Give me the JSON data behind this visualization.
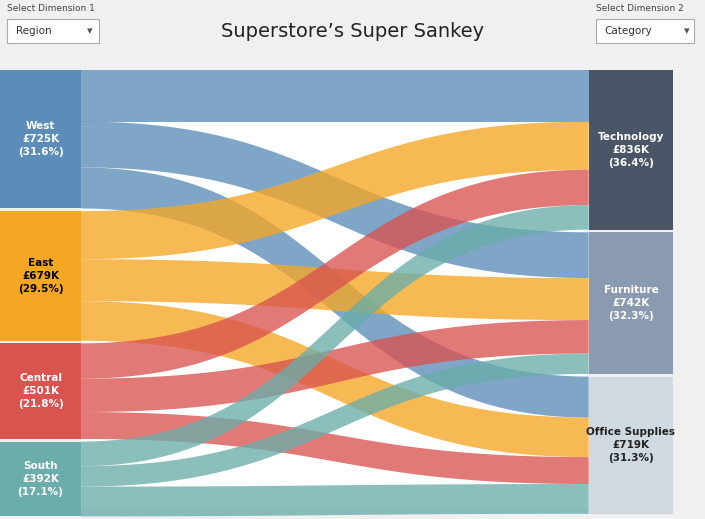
{
  "title": "Superstore’s Super Sankey",
  "left_nodes": [
    {
      "label": "West",
      "value": 725,
      "pct": "31.6%",
      "color": "#5b8db8"
    },
    {
      "label": "East",
      "value": 679,
      "pct": "29.5%",
      "color": "#f5a623"
    },
    {
      "label": "Central",
      "value": 501,
      "pct": "21.8%",
      "color": "#d9534f"
    },
    {
      "label": "South",
      "value": 392,
      "pct": "17.1%",
      "color": "#6aadaa"
    }
  ],
  "right_nodes": [
    {
      "label": "Technology",
      "value": 836,
      "pct": "36.4%",
      "color": "#4a5568"
    },
    {
      "label": "Furniture",
      "value": 742,
      "pct": "32.3%",
      "color": "#8a9ab0"
    },
    {
      "label": "Office Supplies",
      "value": 719,
      "pct": "31.3%",
      "color": "#d0d8e0"
    }
  ],
  "flows": [
    {
      "from": 0,
      "to": 0,
      "value": 270
    },
    {
      "from": 0,
      "to": 1,
      "value": 240
    },
    {
      "from": 0,
      "to": 2,
      "value": 215
    },
    {
      "from": 1,
      "to": 0,
      "value": 252
    },
    {
      "from": 1,
      "to": 1,
      "value": 220
    },
    {
      "from": 1,
      "to": 2,
      "value": 207
    },
    {
      "from": 2,
      "to": 0,
      "value": 185
    },
    {
      "from": 2,
      "to": 1,
      "value": 175
    },
    {
      "from": 2,
      "to": 2,
      "value": 141
    },
    {
      "from": 3,
      "to": 0,
      "value": 129
    },
    {
      "from": 3,
      "to": 1,
      "value": 107
    },
    {
      "from": 3,
      "to": 2,
      "value": 156
    }
  ]
}
